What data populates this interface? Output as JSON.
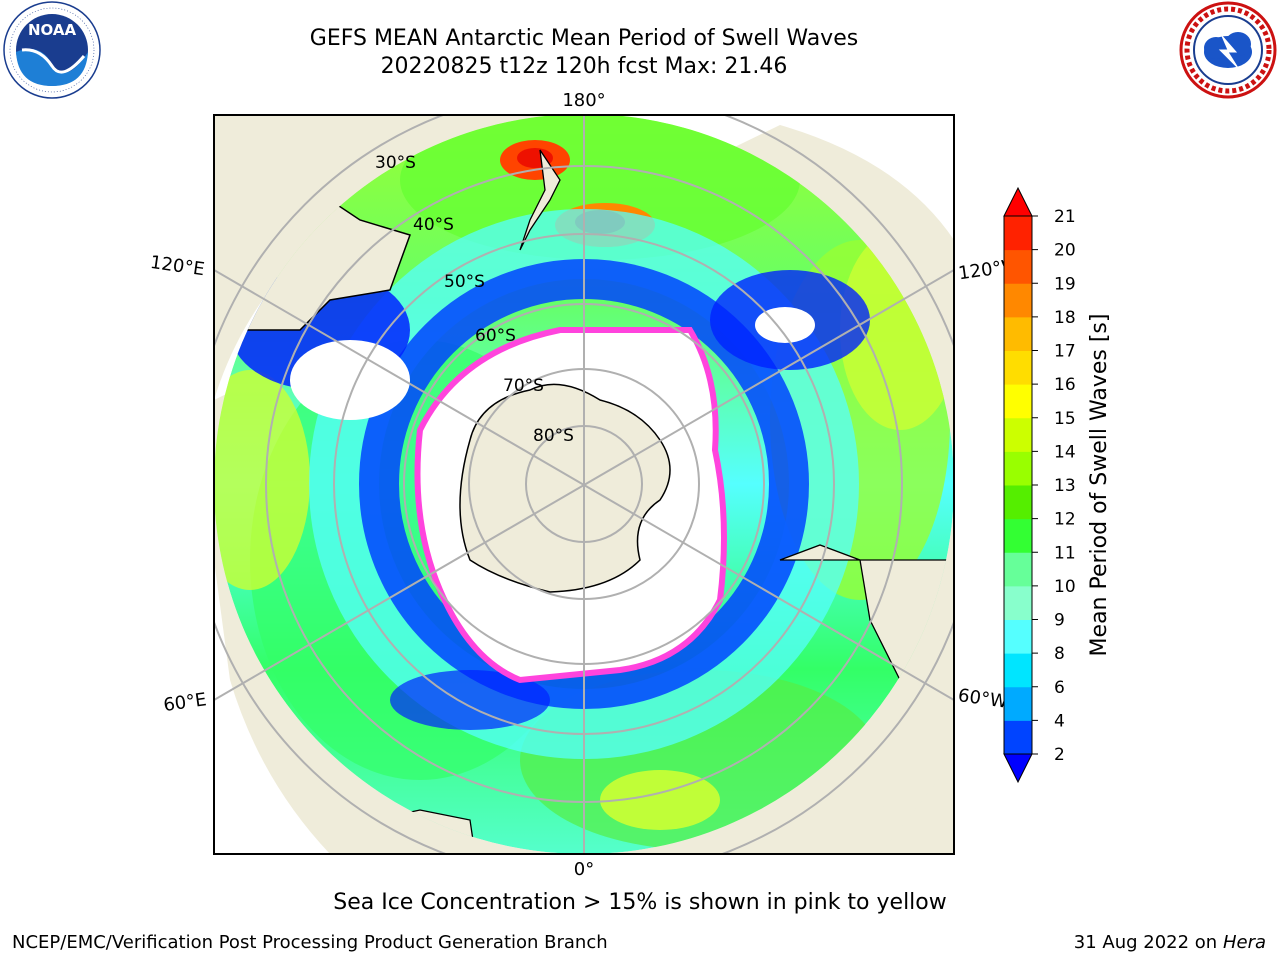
{
  "header": {
    "title_line1": "GEFS MEAN Antarctic Mean Period of Swell Waves",
    "title_line2": "20220825 t12z 120h fcst   Max: 21.46"
  },
  "logos": {
    "left": {
      "icon": "noaa-logo-icon",
      "text": "NOAA"
    },
    "right": {
      "icon": "national-weather-service-logo-icon"
    }
  },
  "map": {
    "projection": "south-polar-stereographic",
    "longitude_labels": {
      "top": "180°",
      "bottom": "0°",
      "upper_left": "120°E",
      "upper_right": "120°W",
      "lower_left": "60°E",
      "lower_right": "60°W"
    },
    "latitude_labels": [
      "30°S",
      "40°S",
      "50°S",
      "60°S",
      "70°S",
      "80°S"
    ],
    "colors": {
      "land": "#efecda",
      "ice_free_ocean_mask": "#ffffff",
      "sea_ice_edge": "#ff44dd",
      "grid": "#b0b0b0"
    }
  },
  "colorbar": {
    "label": "Mean Period of Swell Waves [s]",
    "ticks": [
      "2",
      "4",
      "6",
      "8",
      "9",
      "10",
      "11",
      "12",
      "13",
      "14",
      "15",
      "16",
      "17",
      "18",
      "19",
      "20",
      "21"
    ],
    "colors": [
      "#0044ff",
      "#00aaff",
      "#00e5ff",
      "#55ffff",
      "#88ffcc",
      "#66ff99",
      "#33ff33",
      "#55ee00",
      "#99ff00",
      "#ccff00",
      "#ffff00",
      "#ffdd00",
      "#ffbb00",
      "#ff8800",
      "#ff5500",
      "#ff2200"
    ],
    "min_arrow_color": "#0000ff",
    "max_arrow_color": "#ff0000"
  },
  "chart_data": {
    "type": "heatmap",
    "title": "GEFS MEAN Antarctic Mean Period of Swell Waves",
    "subtitle": "20220825 t12z 120h fcst   Max: 21.46",
    "variable_label": "Mean Period of Swell Waves [s]",
    "color_levels": [
      2,
      4,
      6,
      8,
      9,
      10,
      11,
      12,
      13,
      14,
      15,
      16,
      17,
      18,
      19,
      20,
      21
    ],
    "max_value": 21.46
  },
  "footer": {
    "note": "Sea Ice Concentration > 15% is shown in pink to yellow",
    "credit": "NCEP/EMC/Verification Post Processing Product Generation Branch",
    "date": "31 Aug 2022 on",
    "host": "Hera"
  }
}
